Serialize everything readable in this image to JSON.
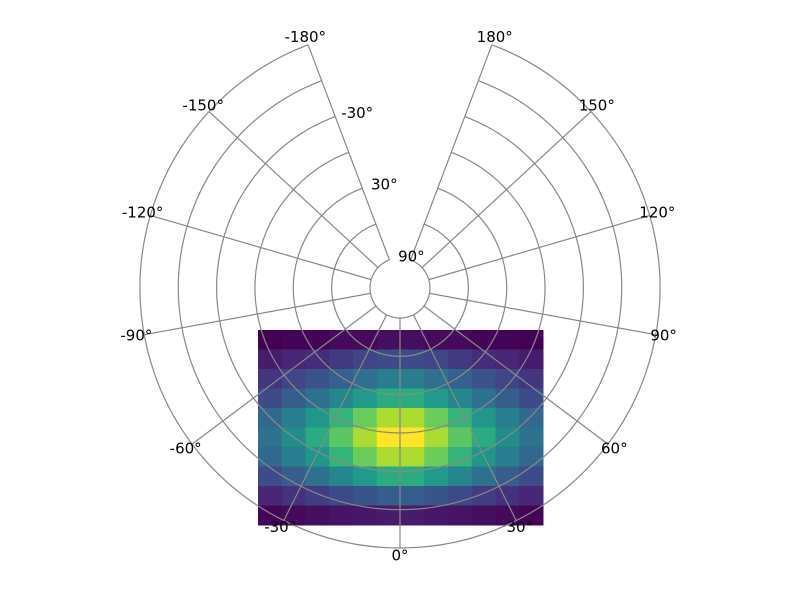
{
  "chart_data": {
    "type": "polar-heatmap",
    "xlim": [
      -180,
      180
    ],
    "ylim": [
      90,
      -90
    ],
    "xticks": [
      {
        "value": -180,
        "label": "-180°"
      },
      {
        "value": -150,
        "label": "-150°"
      },
      {
        "value": -120,
        "label": "-120°"
      },
      {
        "value": -90,
        "label": "-90°"
      },
      {
        "value": -60,
        "label": "-60°"
      },
      {
        "value": -30,
        "label": "-30°"
      },
      {
        "value": 0,
        "label": "0°"
      },
      {
        "value": 30,
        "label": "30°"
      },
      {
        "value": 60,
        "label": "60°"
      },
      {
        "value": 90,
        "label": "90°"
      },
      {
        "value": 120,
        "label": "120°"
      },
      {
        "value": 150,
        "label": "150°"
      },
      {
        "value": 180,
        "label": "180°"
      }
    ],
    "yticks": [
      {
        "value": 90,
        "label": "90°"
      },
      {
        "value": 60,
        "label": null
      },
      {
        "value": 30,
        "label": "30°"
      },
      {
        "value": 0,
        "label": null
      },
      {
        "value": -30,
        "label": "-30°"
      },
      {
        "value": -60,
        "label": null
      },
      {
        "value": -90,
        "label": null
      }
    ],
    "grid": true,
    "colormap": "viridis",
    "values": [
      [
        0.2,
        0.3,
        0.3,
        0.4,
        0.4,
        0.5,
        0.5,
        0.4,
        0.4,
        0.3,
        0.3,
        0.2
      ],
      [
        0.8,
        1,
        1.2,
        1.5,
        1.8,
        2,
        2,
        1.8,
        1.5,
        1.2,
        1,
        0.8
      ],
      [
        1.4,
        1.8,
        2.2,
        2.6,
        3.1,
        3.5,
        3.5,
        3.1,
        2.6,
        2.2,
        1.8,
        1.4
      ],
      [
        2,
        2.5,
        3.1,
        3.8,
        4.4,
        5,
        5,
        4.4,
        3.8,
        3.1,
        2.5,
        2
      ],
      [
        2.8,
        3.5,
        4.3,
        5.3,
        6.2,
        7,
        7,
        6.2,
        5.3,
        4.3,
        3.5,
        2.8
      ],
      [
        3.2,
        4,
        5,
        6,
        7,
        8,
        8,
        7,
        6,
        5,
        4,
        3.2
      ],
      [
        2.8,
        3.5,
        4.3,
        5.3,
        6.2,
        7,
        7,
        6.2,
        5.3,
        4.3,
        3.5,
        2.8
      ],
      [
        2,
        2.5,
        3.1,
        3.8,
        4.4,
        5,
        5,
        4.4,
        3.8,
        3.1,
        2.5,
        2
      ],
      [
        1,
        1.3,
        1.6,
        1.9,
        2.2,
        2.5,
        2.5,
        2.2,
        1.9,
        1.6,
        1.3,
        1
      ],
      [
        0.3,
        0.4,
        0.5,
        0.6,
        0.7,
        0.8,
        0.8,
        0.7,
        0.6,
        0.5,
        0.4,
        0.3
      ]
    ]
  }
}
